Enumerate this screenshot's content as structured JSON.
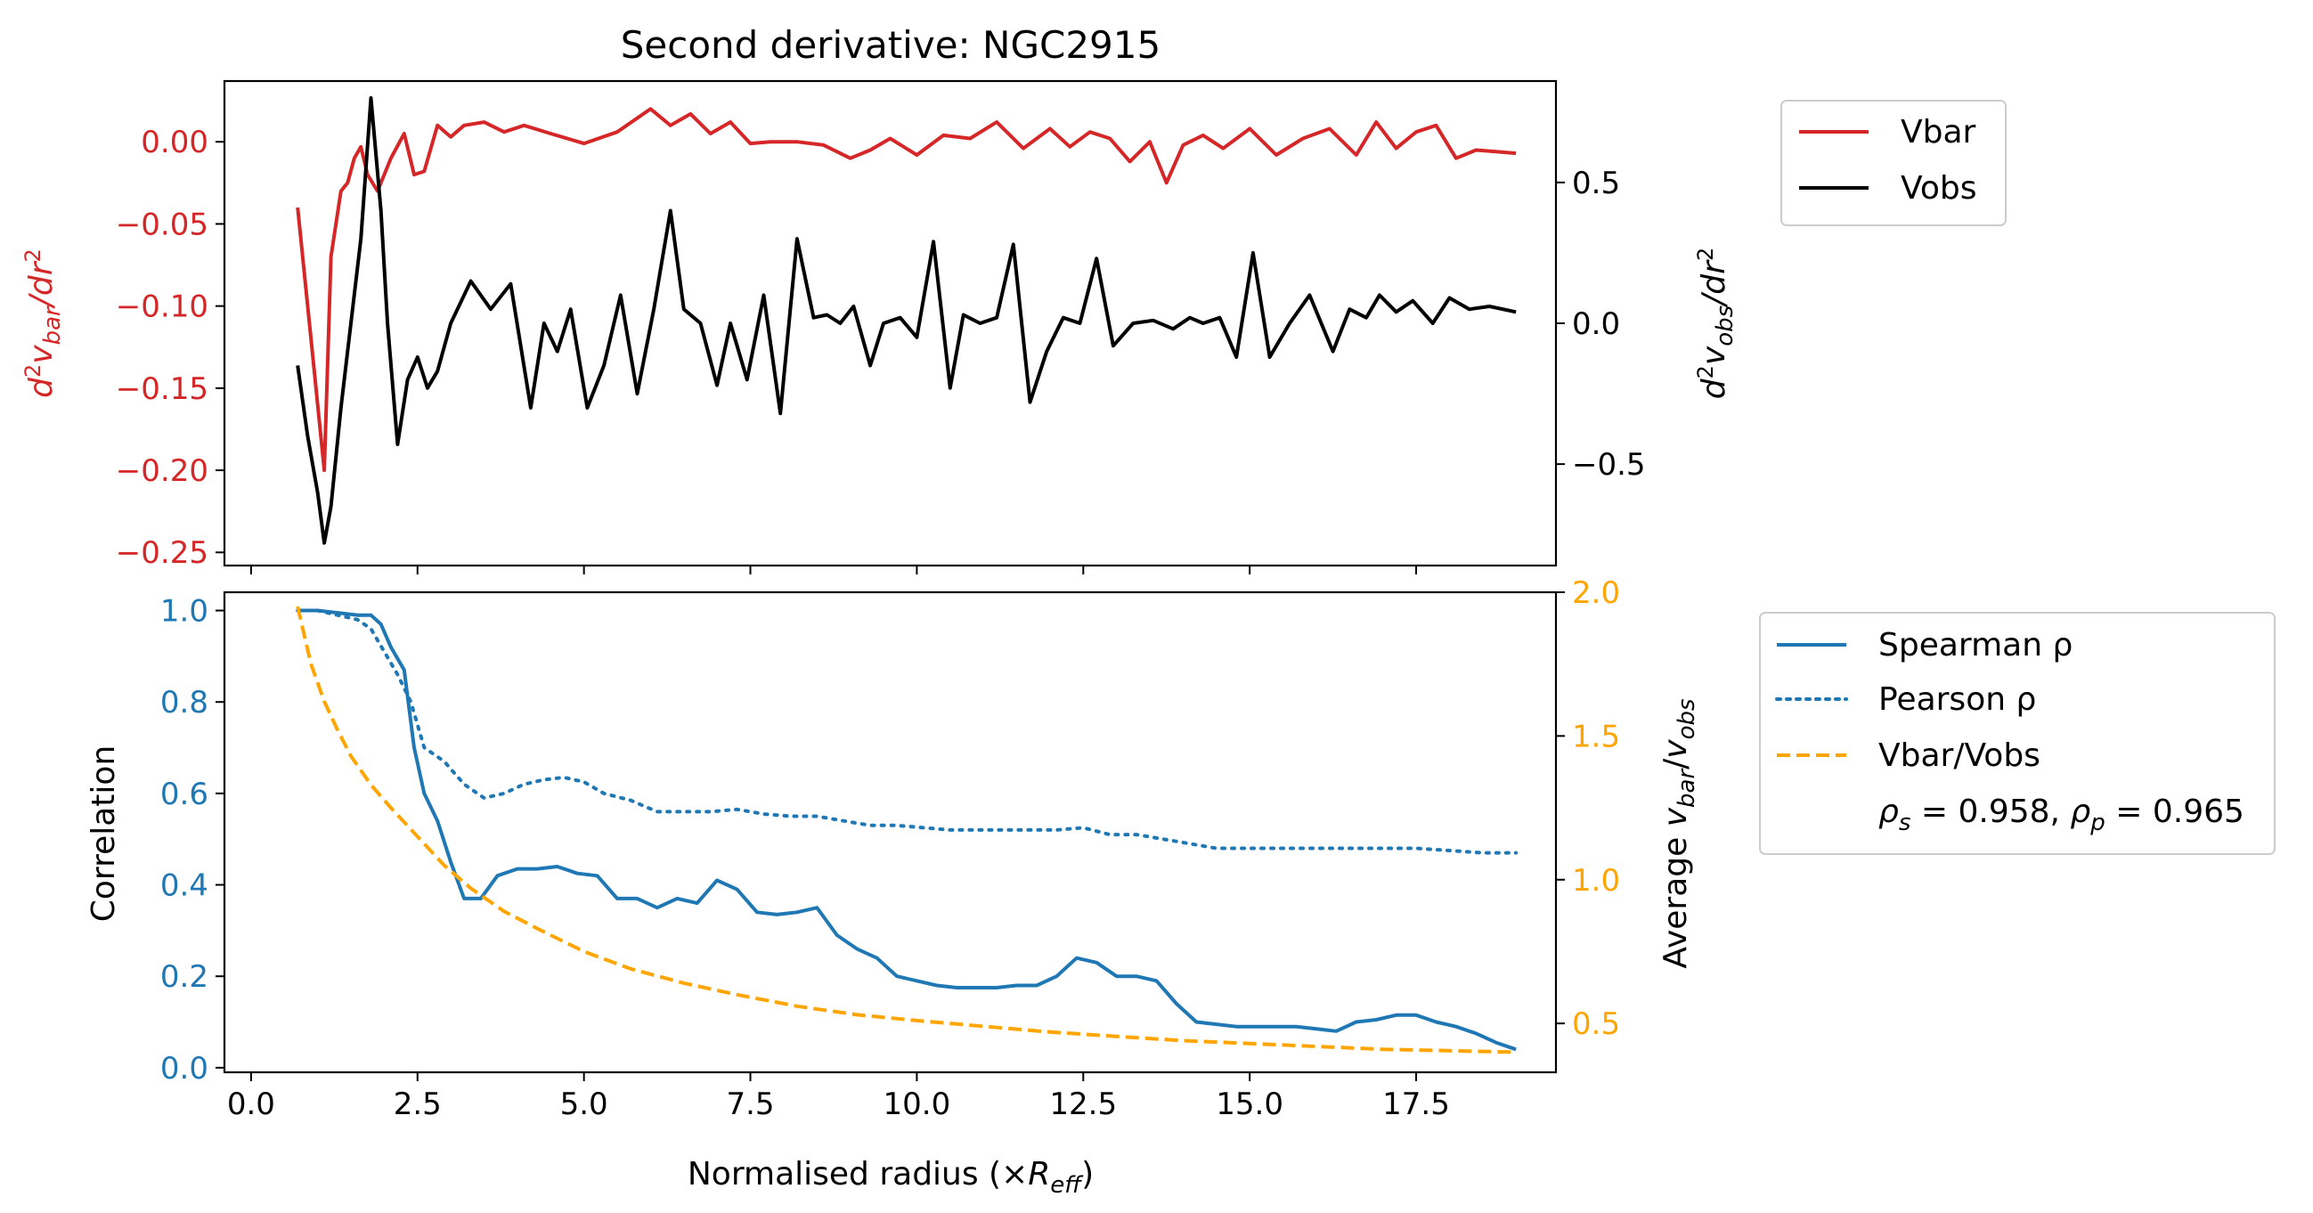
{
  "chart_data": [
    {
      "type": "line",
      "title": "Second derivative: NGC2915",
      "x_ticks": [
        "0.0",
        "2.5",
        "5.0",
        "7.5",
        "10.0",
        "12.5",
        "15.0",
        "17.5"
      ],
      "x_tick_values": [
        0,
        2.5,
        5,
        7.5,
        10,
        12.5,
        15,
        17.5
      ],
      "xlim": [
        -0.4,
        19.6
      ],
      "left_axis": {
        "label_prefix": "d",
        "label_sup": "2",
        "label_main": "v",
        "label_sub": "bar",
        "label_suffix": "/dr",
        "label_suffix_sup": "2",
        "color": "#d62728",
        "ylim": [
          -0.258,
          0.037
        ],
        "ticks": [
          "−0.25",
          "−0.20",
          "−0.15",
          "−0.10",
          "−0.05",
          "0.00"
        ],
        "tick_values": [
          -0.25,
          -0.2,
          -0.15,
          -0.1,
          -0.05,
          0.0
        ]
      },
      "right_axis": {
        "label_prefix": "d",
        "label_sup": "2",
        "label_main": "v",
        "label_sub": "obs",
        "label_suffix": "/dr",
        "label_suffix_sup": "2",
        "color": "#000000",
        "ylim": [
          -0.86,
          0.86
        ],
        "ticks": [
          "−0.5",
          "0.0",
          "0.5"
        ],
        "tick_values": [
          -0.5,
          0.0,
          0.5
        ]
      },
      "legend": {
        "placement": "outside upper right",
        "entries": [
          "Vbar",
          "Vobs"
        ]
      },
      "series": [
        {
          "name": "Vbar",
          "axis": "left",
          "color": "#d62728",
          "x": [
            0.7,
            0.9,
            1.1,
            1.2,
            1.35,
            1.45,
            1.55,
            1.65,
            1.75,
            1.9,
            2.1,
            2.3,
            2.45,
            2.6,
            2.8,
            3.0,
            3.2,
            3.5,
            3.8,
            4.1,
            4.5,
            5.0,
            5.5,
            6.0,
            6.3,
            6.6,
            6.9,
            7.2,
            7.5,
            7.8,
            8.2,
            8.6,
            9.0,
            9.3,
            9.6,
            10.0,
            10.4,
            10.8,
            11.2,
            11.6,
            12.0,
            12.3,
            12.6,
            12.9,
            13.2,
            13.5,
            13.75,
            14.0,
            14.3,
            14.6,
            15.0,
            15.4,
            15.8,
            16.2,
            16.6,
            16.9,
            17.2,
            17.5,
            17.8,
            18.1,
            18.4,
            18.7,
            19.0
          ],
          "y": [
            -0.04,
            -0.12,
            -0.2,
            -0.07,
            -0.03,
            -0.025,
            -0.01,
            -0.003,
            -0.02,
            -0.03,
            -0.01,
            0.005,
            -0.02,
            -0.018,
            0.01,
            0.003,
            0.01,
            0.012,
            0.006,
            0.01,
            0.005,
            -0.001,
            0.006,
            0.02,
            0.01,
            0.017,
            0.005,
            0.012,
            -0.001,
            0.0,
            0.0,
            -0.002,
            -0.01,
            -0.005,
            0.002,
            -0.008,
            0.004,
            0.002,
            0.012,
            -0.004,
            0.008,
            -0.003,
            0.006,
            0.002,
            -0.012,
            0.0,
            -0.025,
            -0.002,
            0.004,
            -0.004,
            0.008,
            -0.008,
            0.002,
            0.008,
            -0.008,
            0.012,
            -0.004,
            0.006,
            0.01,
            -0.01,
            -0.005,
            -0.006,
            -0.007
          ]
        },
        {
          "name": "Vobs",
          "axis": "right",
          "color": "#000000",
          "x": [
            0.7,
            0.85,
            1.0,
            1.1,
            1.2,
            1.35,
            1.5,
            1.65,
            1.8,
            1.95,
            2.05,
            2.2,
            2.35,
            2.5,
            2.65,
            2.8,
            3.0,
            3.3,
            3.6,
            3.9,
            4.2,
            4.4,
            4.6,
            4.8,
            5.05,
            5.3,
            5.55,
            5.8,
            6.05,
            6.3,
            6.5,
            6.75,
            7.0,
            7.2,
            7.45,
            7.7,
            7.95,
            8.2,
            8.45,
            8.65,
            8.85,
            9.05,
            9.3,
            9.5,
            9.75,
            10.0,
            10.25,
            10.5,
            10.7,
            10.95,
            11.2,
            11.45,
            11.7,
            11.95,
            12.2,
            12.45,
            12.7,
            12.95,
            13.25,
            13.55,
            13.85,
            14.1,
            14.3,
            14.55,
            14.8,
            15.05,
            15.3,
            15.6,
            15.9,
            16.25,
            16.5,
            16.75,
            16.95,
            17.2,
            17.45,
            17.75,
            18.0,
            18.3,
            18.6,
            19.0
          ],
          "y": [
            -0.15,
            -0.4,
            -0.6,
            -0.78,
            -0.65,
            -0.3,
            0.0,
            0.3,
            0.8,
            0.4,
            0.0,
            -0.43,
            -0.2,
            -0.12,
            -0.23,
            -0.17,
            0.0,
            0.15,
            0.05,
            0.14,
            -0.3,
            0.0,
            -0.1,
            0.05,
            -0.3,
            -0.15,
            0.1,
            -0.25,
            0.05,
            0.4,
            0.05,
            0.0,
            -0.22,
            0.0,
            -0.2,
            0.1,
            -0.32,
            0.3,
            0.02,
            0.03,
            0.0,
            0.06,
            -0.15,
            0.0,
            0.02,
            -0.05,
            0.29,
            -0.23,
            0.03,
            0.0,
            0.02,
            0.28,
            -0.28,
            -0.1,
            0.02,
            0.0,
            0.23,
            -0.08,
            0.0,
            0.01,
            -0.02,
            0.02,
            0.0,
            0.02,
            -0.12,
            0.25,
            -0.12,
            0.0,
            0.1,
            -0.1,
            0.05,
            0.02,
            0.1,
            0.04,
            0.08,
            0.0,
            0.09,
            0.05,
            0.06,
            0.04
          ]
        }
      ]
    },
    {
      "type": "line",
      "xlabel_prefix": "Normalised radius (×",
      "xlabel_main": "R",
      "xlabel_sub": "eff",
      "xlabel_suffix": ")",
      "x_ticks": [
        "0.0",
        "2.5",
        "5.0",
        "7.5",
        "10.0",
        "12.5",
        "15.0",
        "17.5"
      ],
      "x_tick_values": [
        0,
        2.5,
        5,
        7.5,
        10,
        12.5,
        15,
        17.5
      ],
      "xlim": [
        -0.4,
        19.6
      ],
      "left_axis": {
        "label": "Correlation",
        "color": "#1f77b4",
        "ylim": [
          -0.01,
          1.04
        ],
        "ticks": [
          "0.0",
          "0.2",
          "0.4",
          "0.6",
          "0.8",
          "1.0"
        ],
        "tick_values": [
          0.0,
          0.2,
          0.4,
          0.6,
          0.8,
          1.0
        ]
      },
      "right_axis": {
        "label_prefix": "Average ",
        "label_main1": "v",
        "label_sub1": "bar",
        "label_mid": "/",
        "label_main2": "v",
        "label_sub2": "obs",
        "color": "#ffa500",
        "ylim": [
          0.33,
          2.0
        ],
        "ticks": [
          "0.5",
          "1.0",
          "1.5",
          "2.0"
        ],
        "tick_values": [
          0.5,
          1.0,
          1.5,
          2.0
        ]
      },
      "legend": {
        "placement": "outside upper right",
        "entries": [
          "Spearman ρ",
          "Pearson ρ",
          "Vbar/Vobs"
        ],
        "stats_rho_s": "0.958",
        "stats_rho_p": "0.965"
      },
      "series": [
        {
          "name": "Spearman ρ",
          "axis": "left",
          "color": "#1f77b4",
          "style": "solid",
          "x": [
            0.7,
            1.0,
            1.3,
            1.6,
            1.8,
            1.95,
            2.1,
            2.3,
            2.45,
            2.6,
            2.8,
            3.0,
            3.2,
            3.45,
            3.7,
            4.0,
            4.3,
            4.6,
            4.9,
            5.2,
            5.5,
            5.8,
            6.1,
            6.4,
            6.7,
            7.0,
            7.3,
            7.6,
            7.9,
            8.2,
            8.5,
            8.8,
            9.1,
            9.4,
            9.7,
            10.0,
            10.3,
            10.6,
            10.9,
            11.2,
            11.5,
            11.8,
            12.1,
            12.4,
            12.7,
            13.0,
            13.3,
            13.6,
            13.9,
            14.2,
            14.5,
            14.8,
            15.1,
            15.4,
            15.7,
            16.0,
            16.3,
            16.6,
            16.9,
            17.2,
            17.5,
            17.8,
            18.1,
            18.4,
            18.7,
            19.0
          ],
          "y": [
            1.0,
            1.0,
            0.995,
            0.99,
            0.99,
            0.97,
            0.92,
            0.87,
            0.7,
            0.6,
            0.54,
            0.45,
            0.37,
            0.37,
            0.42,
            0.435,
            0.435,
            0.44,
            0.425,
            0.42,
            0.37,
            0.37,
            0.35,
            0.37,
            0.36,
            0.41,
            0.39,
            0.34,
            0.335,
            0.34,
            0.35,
            0.29,
            0.26,
            0.24,
            0.2,
            0.19,
            0.18,
            0.175,
            0.175,
            0.175,
            0.18,
            0.18,
            0.2,
            0.24,
            0.23,
            0.2,
            0.2,
            0.19,
            0.14,
            0.1,
            0.095,
            0.09,
            0.09,
            0.09,
            0.09,
            0.085,
            0.08,
            0.1,
            0.105,
            0.115,
            0.115,
            0.1,
            0.09,
            0.075,
            0.055,
            0.04
          ]
        },
        {
          "name": "Pearson ρ",
          "axis": "left",
          "color": "#1f77b4",
          "style": "dotted",
          "x": [
            0.7,
            1.0,
            1.3,
            1.6,
            1.8,
            2.0,
            2.2,
            2.4,
            2.6,
            2.9,
            3.2,
            3.5,
            3.8,
            4.1,
            4.4,
            4.7,
            5.0,
            5.3,
            5.7,
            6.1,
            6.5,
            6.9,
            7.3,
            7.7,
            8.1,
            8.5,
            8.9,
            9.3,
            9.7,
            10.1,
            10.5,
            10.9,
            11.3,
            11.7,
            12.1,
            12.5,
            12.9,
            13.3,
            13.7,
            14.1,
            14.5,
            15.0,
            15.5,
            16.0,
            16.5,
            17.0,
            17.5,
            18.0,
            18.5,
            19.0
          ],
          "y": [
            1.0,
            1.0,
            0.99,
            0.98,
            0.96,
            0.91,
            0.86,
            0.8,
            0.7,
            0.67,
            0.62,
            0.59,
            0.6,
            0.62,
            0.63,
            0.635,
            0.625,
            0.6,
            0.585,
            0.56,
            0.56,
            0.56,
            0.565,
            0.555,
            0.55,
            0.55,
            0.54,
            0.53,
            0.53,
            0.525,
            0.52,
            0.52,
            0.52,
            0.52,
            0.52,
            0.525,
            0.51,
            0.51,
            0.5,
            0.49,
            0.48,
            0.48,
            0.48,
            0.48,
            0.48,
            0.48,
            0.48,
            0.475,
            0.47,
            0.47
          ]
        },
        {
          "name": "Vbar/Vobs",
          "axis": "right",
          "color": "#ffa500",
          "style": "dashed",
          "x": [
            0.7,
            0.9,
            1.1,
            1.3,
            1.5,
            1.8,
            2.1,
            2.5,
            2.9,
            3.3,
            3.8,
            4.3,
            5.0,
            5.7,
            6.5,
            7.3,
            8.2,
            9.1,
            10.0,
            11.0,
            12.0,
            13.0,
            14.0,
            15.0,
            16.0,
            17.0,
            18.0,
            19.0
          ],
          "y": [
            1.95,
            1.75,
            1.62,
            1.52,
            1.43,
            1.33,
            1.25,
            1.15,
            1.05,
            0.97,
            0.89,
            0.83,
            0.75,
            0.69,
            0.64,
            0.6,
            0.56,
            0.53,
            0.51,
            0.49,
            0.47,
            0.455,
            0.44,
            0.43,
            0.42,
            0.41,
            0.405,
            0.4
          ]
        }
      ]
    }
  ]
}
